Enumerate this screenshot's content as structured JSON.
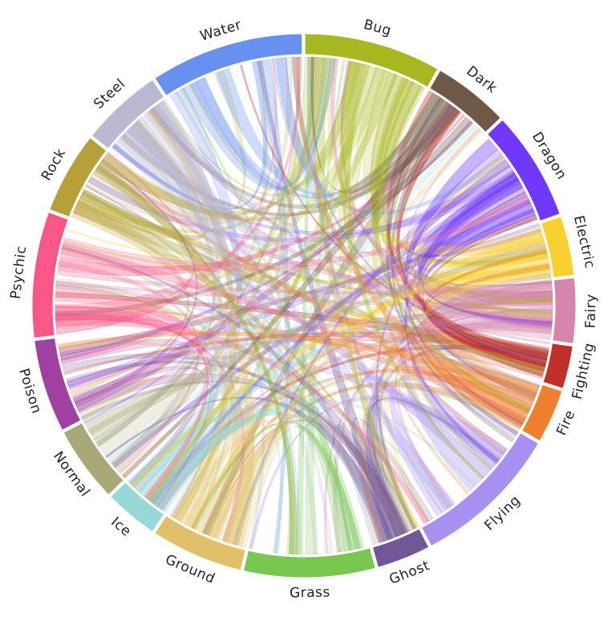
{
  "diagram": {
    "type": "chord",
    "start_group": "Bug",
    "order": "clockwise",
    "groups": [
      {
        "name": "Bug",
        "color": "#A8B820"
      },
      {
        "name": "Dark",
        "color": "#705848"
      },
      {
        "name": "Dragon",
        "color": "#7038F8"
      },
      {
        "name": "Electric",
        "color": "#F8D030"
      },
      {
        "name": "Fairy",
        "color": "#D685AD"
      },
      {
        "name": "Fighting",
        "color": "#C03028"
      },
      {
        "name": "Fire",
        "color": "#F08030"
      },
      {
        "name": "Flying",
        "color": "#A890F0"
      },
      {
        "name": "Ghost",
        "color": "#705898"
      },
      {
        "name": "Grass",
        "color": "#78C850"
      },
      {
        "name": "Ground",
        "color": "#E0C068"
      },
      {
        "name": "Ice",
        "color": "#98D8D8"
      },
      {
        "name": "Normal",
        "color": "#A8A878"
      },
      {
        "name": "Poison",
        "color": "#A040A0"
      },
      {
        "name": "Psychic",
        "color": "#F85888"
      },
      {
        "name": "Rock",
        "color": "#B8A038"
      },
      {
        "name": "Steel",
        "color": "#B8B8D0"
      },
      {
        "name": "Water",
        "color": "#6890F0"
      }
    ]
  },
  "chart_data": {
    "type": "chord",
    "groups": [
      "Bug",
      "Dark",
      "Dragon",
      "Electric",
      "Fairy",
      "Fighting",
      "Fire",
      "Flying",
      "Ghost",
      "Grass",
      "Ground",
      "Ice",
      "Normal",
      "Poison",
      "Psychic",
      "Rock",
      "Steel",
      "Water"
    ],
    "weights": [
      25,
      14,
      20,
      11,
      12,
      8,
      10,
      27,
      10,
      24,
      17,
      10,
      14,
      17,
      23,
      15,
      15,
      28
    ]
  }
}
